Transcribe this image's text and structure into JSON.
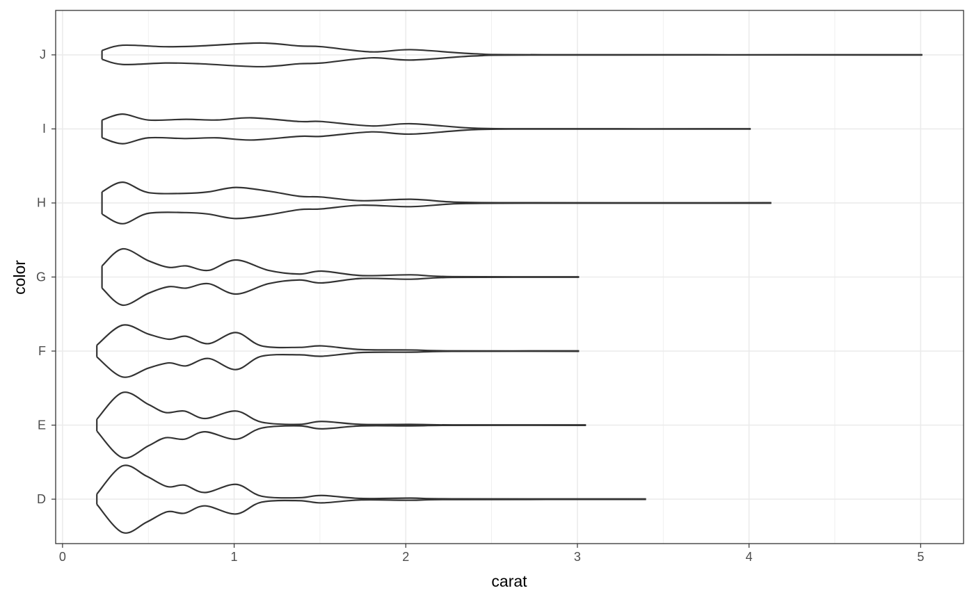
{
  "chart_data": {
    "type": "violin",
    "x_label": "carat",
    "y_label": "color",
    "categories": [
      "D",
      "E",
      "F",
      "G",
      "H",
      "I",
      "J"
    ],
    "xlim": [
      -0.04,
      5.25
    ],
    "xticks": [
      0,
      1,
      2,
      3,
      4,
      5
    ],
    "minor_xticks": [
      0.5,
      1.5,
      2.5,
      3.5,
      4.5
    ],
    "grid": true,
    "color": "#333333",
    "violins": [
      {
        "x": [
          0.2,
          0.35,
          0.49,
          0.61,
          0.71,
          0.83,
          1.01,
          1.16,
          1.38,
          1.51,
          1.74,
          2.03,
          2.27,
          3.4
        ],
        "width": [
          0.07,
          0.45,
          0.31,
          0.17,
          0.19,
          0.09,
          0.2,
          0.04,
          0.02,
          0.05,
          0.01,
          0.015,
          0.005,
          0.003
        ]
      },
      {
        "x": [
          0.2,
          0.35,
          0.5,
          0.6,
          0.71,
          0.83,
          1.01,
          1.16,
          1.38,
          1.51,
          1.74,
          2.03,
          2.27,
          3.05
        ],
        "width": [
          0.08,
          0.44,
          0.28,
          0.17,
          0.19,
          0.09,
          0.19,
          0.04,
          0.01,
          0.05,
          0.01,
          0.01,
          0.003,
          0.003
        ]
      },
      {
        "x": [
          0.2,
          0.35,
          0.5,
          0.62,
          0.72,
          0.85,
          1.01,
          1.16,
          1.38,
          1.51,
          1.74,
          2.03,
          2.27,
          3.01
        ],
        "width": [
          0.08,
          0.35,
          0.23,
          0.16,
          0.2,
          0.1,
          0.25,
          0.07,
          0.05,
          0.07,
          0.02,
          0.015,
          0.003,
          0.003
        ]
      },
      {
        "x": [
          0.23,
          0.35,
          0.5,
          0.62,
          0.72,
          0.85,
          1.01,
          1.2,
          1.38,
          1.51,
          1.74,
          2.03,
          2.27,
          3.01
        ],
        "width": [
          0.15,
          0.38,
          0.22,
          0.13,
          0.15,
          0.09,
          0.23,
          0.09,
          0.04,
          0.08,
          0.02,
          0.03,
          0.005,
          0.003
        ]
      },
      {
        "x": [
          0.23,
          0.35,
          0.5,
          0.72,
          0.85,
          1.01,
          1.2,
          1.38,
          1.51,
          1.74,
          2.03,
          2.3,
          2.7,
          4.13
        ],
        "width": [
          0.15,
          0.28,
          0.14,
          0.13,
          0.15,
          0.21,
          0.16,
          0.09,
          0.08,
          0.03,
          0.05,
          0.01,
          0.003,
          0.003
        ]
      },
      {
        "x": [
          0.23,
          0.35,
          0.5,
          0.72,
          0.9,
          1.1,
          1.38,
          1.51,
          1.8,
          2.03,
          2.4,
          2.8,
          4.01
        ],
        "width": [
          0.12,
          0.2,
          0.12,
          0.13,
          0.12,
          0.15,
          0.1,
          0.1,
          0.04,
          0.07,
          0.01,
          0.002,
          0.002
        ]
      },
      {
        "x": [
          0.23,
          0.35,
          0.6,
          0.8,
          1.15,
          1.38,
          1.51,
          1.8,
          2.03,
          2.4,
          2.8,
          5.01
        ],
        "width": [
          0.06,
          0.13,
          0.11,
          0.12,
          0.16,
          0.12,
          0.11,
          0.04,
          0.07,
          0.015,
          0.002,
          0.002
        ]
      }
    ]
  }
}
